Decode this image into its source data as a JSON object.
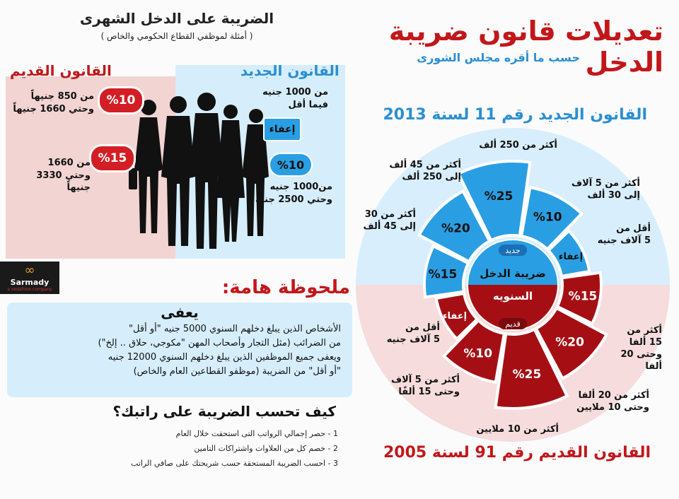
{
  "header": {
    "title": "تعديلات قانون ضريبة الدخل",
    "subtitle": "حسب ما أقره مجلس الشورى"
  },
  "monthly": {
    "title": "الضريبة على الدخل الشهرى",
    "subtitle": "( أمثلة لموظفي القطاع الحكومي والخاص )",
    "old_label": "القانون القديم",
    "new_label": "القانون الجديد",
    "old_10_badge": "%10",
    "old_10_text_1": "من 850 جنيهاً",
    "old_10_text_2": "وحتي 1660 جنيهاً",
    "old_15_badge": "%15",
    "old_15_text_1": "من 1660",
    "old_15_text_2": "وحتي 3330 جنيهاً",
    "new_exempt_text_1": "من 1000 جنيه",
    "new_exempt_text_2": "فيما أقل",
    "new_exempt_badge": "إعفاء",
    "new_10_badge": "%10",
    "new_10_text_1": "من1000 جنيه",
    "new_10_text_2": "وحتي 2500 جنيه"
  },
  "brand": {
    "name": "Sarmady",
    "tag": "a vodafone company"
  },
  "note": {
    "title": "ملحوظة هامة:",
    "heading": "يعفى",
    "line1": "الأشخاص الذين يبلغ دخلهم السنوي 5000 جنيه \"أو أقل\"",
    "line2": "من الضرائب (مثل التجار وأصحاب المهن \"مكوجي، حلاق .. إلخ\")",
    "line3": "ويعفى جميع الموظفين الذين يبلغ دخلهم السنوي 12000 جنيه",
    "line4": "\"أو أقل\" من الضريبة (موظفو القطاعين العام والخاص)"
  },
  "howto": {
    "title": "كيف تحسب الضريبة على راتبك؟",
    "steps": [
      "1 - حصر إجمالي الرواتب التى استحقت خلال العام",
      "2 - خصم كل من العلاوات واشتراكات التامين",
      "3 - احسب الضريبة المستحقة حسب شريحتك على صافي الراتب"
    ]
  },
  "wheel": {
    "new_title": "القانون الجديد رقم 11 لسنة 2013",
    "old_title": "القانون القديم  رقم 91 لسنة 2005",
    "center_top": "ضريبة الدخل",
    "center_bottom": "السنويه",
    "new_tag": "جديد",
    "old_tag": "قديم",
    "new_segments": [
      {
        "rate": "إعفاء",
        "label_1": "أقل من",
        "label_2": "5 آلاف جنيه"
      },
      {
        "rate": "%10",
        "label_1": "أكثر من 5 آلاف",
        "label_2": "إلى 30 ألف"
      },
      {
        "rate": "%25",
        "label_1": "أكثر من 250 ألف",
        "label_2": ""
      },
      {
        "rate": "%20",
        "label_1": "أكثر من 45 ألف",
        "label_2": "إلى 250 ألف"
      },
      {
        "rate": "%15",
        "label_1": "أكثر من 30",
        "label_2": "إلى 45 ألف"
      }
    ],
    "old_segments": [
      {
        "rate": "إعفاء",
        "label_1": "أقل من",
        "label_2": "5 آلاف جنيه"
      },
      {
        "rate": "%10",
        "label_1": "أكثر من 5 آلاف",
        "label_2": "وحتى 15 ألفًا"
      },
      {
        "rate": "%25",
        "label_1": "أكثر من 10 ملايين",
        "label_2": ""
      },
      {
        "rate": "%20",
        "label_1": "أكثر من 20 ألفا",
        "label_2": "وحتى 10 ملايين"
      },
      {
        "rate": "%15",
        "label_1": "أكثر من",
        "label_2": "15 ألفا",
        "label_3": "وحتى 20 ألفا"
      }
    ]
  },
  "colors": {
    "red": "#c2171a",
    "blue": "#2a9ee2",
    "dark_red": "#a50f14"
  }
}
